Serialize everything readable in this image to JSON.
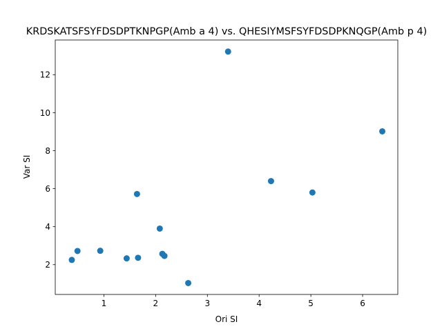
{
  "chart_data": {
    "type": "scatter",
    "title": "KRDSKATSFSYFDSDPTKNPGP(Amb a 4) vs. QHESIYMSFSYFDSDPKNQGP(Amb p 4)",
    "xlabel": "Ori SI",
    "ylabel": "Var SI",
    "xlim": [
      0.06,
      6.68
    ],
    "ylim": [
      0.43,
      13.83
    ],
    "xticks": [
      1,
      2,
      3,
      4,
      5,
      6
    ],
    "yticks": [
      2,
      4,
      6,
      8,
      10,
      12
    ],
    "grid": false,
    "legend": "none",
    "marker_color": "#1f77b4",
    "series": [
      {
        "x": [
          0.38,
          0.49,
          0.93,
          1.44,
          1.64,
          1.66,
          2.08,
          2.13,
          2.17,
          2.63,
          3.4,
          4.23,
          5.03,
          6.38
        ],
        "y": [
          2.25,
          2.72,
          2.73,
          2.33,
          5.72,
          2.36,
          3.9,
          2.57,
          2.46,
          1.03,
          13.22,
          6.4,
          5.8,
          9.02
        ]
      }
    ]
  }
}
